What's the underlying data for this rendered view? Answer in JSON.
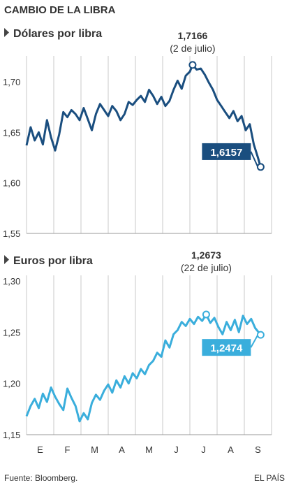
{
  "header": {
    "title": "CAMBIO DE LA LIBRA"
  },
  "footer": {
    "source": "Fuente: Bloomberg.",
    "brand": "EL PAÍS"
  },
  "colors": {
    "usd": "#1a4e7f",
    "eur": "#3aaedc",
    "grid": "#c8c8c8",
    "text": "#333333"
  },
  "chart_data": [
    {
      "type": "line",
      "title": "Dólares por libra",
      "months": [
        "E",
        "F",
        "M",
        "A",
        "M",
        "J",
        "J",
        "A",
        "S"
      ],
      "ylim": [
        1.55,
        1.72
      ],
      "yticks": [
        "1,55",
        "1,60",
        "1,65",
        "1,70"
      ],
      "ytick_values": [
        1.55,
        1.6,
        1.65,
        1.7
      ],
      "grid": "vertical",
      "max": {
        "value": 1.7166,
        "label": "1,7166",
        "date": "(2 de julio)",
        "t": 6.1
      },
      "last": {
        "value": 1.6157,
        "label": "1,6157",
        "t": 8.6
      },
      "series": [
        {
          "t": [
            0,
            0.15,
            0.3,
            0.45,
            0.6,
            0.75,
            0.9,
            1.05,
            1.2,
            1.35,
            1.5,
            1.65,
            1.8,
            1.95,
            2.1,
            2.25,
            2.4,
            2.55,
            2.7,
            2.85,
            3.0,
            3.15,
            3.3,
            3.45,
            3.6,
            3.75,
            3.9,
            4.05,
            4.2,
            4.35,
            4.5,
            4.65,
            4.8,
            4.95,
            5.1,
            5.25,
            5.4,
            5.55,
            5.7,
            5.85,
            6.0,
            6.1,
            6.25,
            6.4,
            6.55,
            6.7,
            6.85,
            7.0,
            7.15,
            7.3,
            7.45,
            7.6,
            7.75,
            7.9,
            8.05,
            8.2,
            8.35,
            8.5,
            8.6
          ],
          "values": [
            1.637,
            1.655,
            1.642,
            1.65,
            1.638,
            1.662,
            1.645,
            1.632,
            1.648,
            1.67,
            1.665,
            1.672,
            1.668,
            1.662,
            1.674,
            1.663,
            1.652,
            1.668,
            1.678,
            1.672,
            1.666,
            1.676,
            1.671,
            1.662,
            1.668,
            1.68,
            1.677,
            1.682,
            1.686,
            1.68,
            1.692,
            1.686,
            1.678,
            1.685,
            1.676,
            1.681,
            1.692,
            1.701,
            1.693,
            1.706,
            1.71,
            1.7166,
            1.712,
            1.713,
            1.707,
            1.699,
            1.692,
            1.682,
            1.676,
            1.67,
            1.664,
            1.671,
            1.661,
            1.666,
            1.652,
            1.658,
            1.638,
            1.625,
            1.6157
          ]
        }
      ]
    },
    {
      "type": "line",
      "title": "Euros por libra",
      "months": [
        "E",
        "F",
        "M",
        "A",
        "M",
        "J",
        "J",
        "A",
        "S"
      ],
      "ylim": [
        1.15,
        1.3
      ],
      "yticks": [
        "1,15",
        "1,20",
        "1,25",
        "1,30"
      ],
      "ytick_values": [
        1.15,
        1.2,
        1.25,
        1.3
      ],
      "grid": "vertical",
      "max": {
        "value": 1.2673,
        "label": "1,2673",
        "date": "(22 de julio)",
        "t": 6.6
      },
      "last": {
        "value": 1.2474,
        "label": "1,2474",
        "t": 8.6
      },
      "series": [
        {
          "t": [
            0,
            0.15,
            0.3,
            0.45,
            0.6,
            0.75,
            0.9,
            1.05,
            1.2,
            1.35,
            1.5,
            1.65,
            1.8,
            1.95,
            2.1,
            2.25,
            2.4,
            2.55,
            2.7,
            2.85,
            3.0,
            3.15,
            3.3,
            3.45,
            3.6,
            3.75,
            3.9,
            4.05,
            4.2,
            4.35,
            4.5,
            4.65,
            4.8,
            4.95,
            5.1,
            5.25,
            5.4,
            5.55,
            5.7,
            5.85,
            6.0,
            6.15,
            6.3,
            6.45,
            6.6,
            6.75,
            6.9,
            7.05,
            7.2,
            7.35,
            7.5,
            7.65,
            7.8,
            7.95,
            8.1,
            8.25,
            8.4,
            8.6
          ],
          "values": [
            1.168,
            1.178,
            1.185,
            1.176,
            1.19,
            1.182,
            1.196,
            1.187,
            1.18,
            1.174,
            1.195,
            1.186,
            1.178,
            1.163,
            1.171,
            1.165,
            1.181,
            1.189,
            1.184,
            1.193,
            1.199,
            1.191,
            1.203,
            1.196,
            1.207,
            1.2,
            1.21,
            1.205,
            1.214,
            1.209,
            1.218,
            1.222,
            1.23,
            1.226,
            1.242,
            1.235,
            1.248,
            1.252,
            1.26,
            1.256,
            1.263,
            1.258,
            1.265,
            1.261,
            1.2673,
            1.259,
            1.264,
            1.255,
            1.248,
            1.26,
            1.252,
            1.262,
            1.25,
            1.266,
            1.258,
            1.263,
            1.254,
            1.2474
          ]
        }
      ]
    }
  ]
}
